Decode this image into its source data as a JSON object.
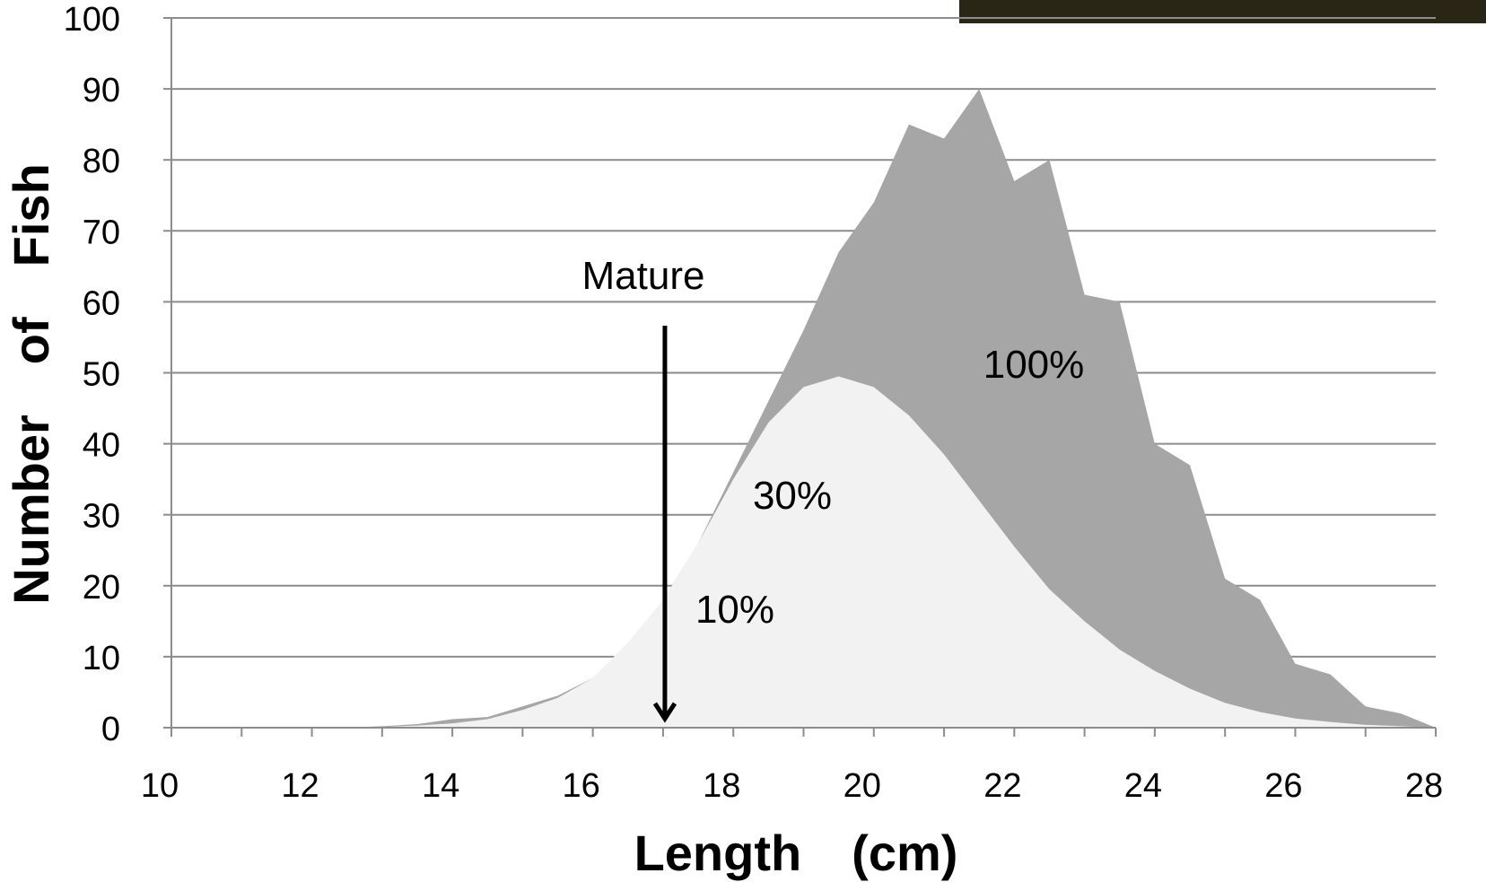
{
  "chart_data": {
    "type": "area",
    "xlabel": "Length (cm) ",
    "ylabel": "Number of Fish ",
    "xlim": [
      10,
      28
    ],
    "ylim": [
      0,
      100
    ],
    "x_ticks": [
      "10 ",
      "12 ",
      "14 ",
      "16 ",
      "18 ",
      "20 ",
      "22 ",
      "24 ",
      "26 ",
      "28 "
    ],
    "y_ticks": [
      "0 ",
      "10 ",
      "20 ",
      "30 ",
      "40 ",
      "50 ",
      "60 ",
      "70 ",
      "80 ",
      "90 ",
      "100 "
    ],
    "x_tick_values": [
      10,
      12,
      14,
      16,
      18,
      20,
      22,
      24,
      26,
      28
    ],
    "y_tick_values": [
      0,
      10,
      20,
      30,
      40,
      50,
      60,
      70,
      80,
      90,
      100
    ],
    "grid": true,
    "colors": {
      "dark_series": "#a6a6a6",
      "light_series": "#f2f2f2",
      "grid": "#8c8c8c"
    },
    "series": [
      {
        "x": [
          12.5,
          13,
          13.5,
          14,
          14.5,
          15,
          15.5,
          16,
          16.5,
          17,
          17.5,
          18,
          18.5,
          19,
          19.5,
          20,
          20.5,
          21,
          21.5,
          22,
          22.5,
          23,
          23.5,
          24,
          24.5,
          25,
          25.5,
          26,
          26.5,
          27,
          27.5,
          28
        ],
        "values": [
          0,
          0.2,
          0.5,
          1.2,
          1.5,
          3,
          4.5,
          7,
          11,
          18,
          26,
          36,
          46,
          56,
          67,
          74,
          85,
          83,
          90,
          77,
          80,
          61,
          60,
          40,
          37,
          21,
          18,
          9,
          7.5,
          3,
          2,
          0
        ]
      },
      {
        "x": [
          12.5,
          13,
          13.5,
          14,
          14.5,
          15,
          15.5,
          16,
          16.5,
          17,
          17.5,
          18,
          18.5,
          19,
          19.5,
          20,
          20.5,
          21,
          21.5,
          22,
          22.5,
          23,
          23.5,
          24,
          24.5,
          25,
          25.5,
          26,
          26.5,
          27,
          27.5,
          28
        ],
        "values": [
          0,
          0.1,
          0.3,
          0.6,
          1.2,
          2.5,
          4.2,
          7,
          12,
          18,
          26,
          35,
          43,
          48,
          49.5,
          48,
          44,
          38.5,
          32,
          25.5,
          19.5,
          15,
          11,
          8,
          5.5,
          3.5,
          2.2,
          1.3,
          0.8,
          0.4,
          0.2,
          0
        ]
      }
    ],
    "annotations": {
      "mature_label": "Mature",
      "mature_x": 17,
      "pct_100": "100%",
      "pct_30": "30%",
      "pct_10": "10%"
    }
  }
}
